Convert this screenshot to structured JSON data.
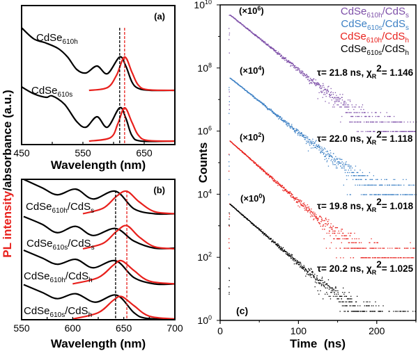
{
  "chart_data": [
    {
      "panel": "(a)",
      "type": "line",
      "xlabel": "Wavelength (nm)",
      "ylabel_parts": [
        "PL intensity",
        "/absorbance (a.u.)"
      ],
      "xlim": [
        450,
        700
      ],
      "ylim": [
        0,
        10
      ],
      "xticks": [
        450,
        550,
        650
      ],
      "xminor": [
        500,
        600,
        700
      ],
      "dashed_lines": [
        {
          "x": 610,
          "color": "#000000"
        },
        {
          "x": 618,
          "color": "#e8201c"
        }
      ],
      "labels": [
        {
          "base": "CdSe",
          "sub": "610h"
        },
        {
          "base": "CdSe",
          "sub": "610s"
        }
      ],
      "series": [
        {
          "name": "CdSe610h absorbance",
          "color": "#000000",
          "points": [
            [
              450,
              8.4
            ],
            [
              470,
              7.6
            ],
            [
              490,
              7.3
            ],
            [
              510,
              6.9
            ],
            [
              525,
              6.3
            ],
            [
              540,
              5.4
            ],
            [
              555,
              5.15
            ],
            [
              573,
              5.65
            ],
            [
              590,
              5.1
            ],
            [
              610,
              6.3
            ],
            [
              620,
              5.65
            ],
            [
              630,
              4.5
            ],
            [
              640,
              4.05
            ],
            [
              660,
              3.9
            ],
            [
              700,
              3.9
            ]
          ]
        },
        {
          "name": "CdSe610h PL",
          "color": "#e8201c",
          "points": [
            [
              560,
              3.9
            ],
            [
              590,
              4.1
            ],
            [
              605,
              5.0
            ],
            [
              618,
              6.3
            ],
            [
              630,
              5.2
            ],
            [
              640,
              4.3
            ],
            [
              655,
              3.95
            ],
            [
              700,
              3.9
            ]
          ]
        },
        {
          "name": "CdSe610s absorbance",
          "color": "#000000",
          "points": [
            [
              450,
              4.15
            ],
            [
              470,
              3.65
            ],
            [
              490,
              3.4
            ],
            [
              500,
              3.5
            ],
            [
              520,
              2.9
            ],
            [
              540,
              1.65
            ],
            [
              555,
              1.25
            ],
            [
              573,
              2.0
            ],
            [
              590,
              1.25
            ],
            [
              610,
              2.65
            ],
            [
              620,
              1.9
            ],
            [
              630,
              0.65
            ],
            [
              645,
              0.25
            ],
            [
              700,
              0.25
            ]
          ]
        },
        {
          "name": "CdSe610s PL",
          "color": "#e8201c",
          "points": [
            [
              560,
              0.25
            ],
            [
              595,
              0.5
            ],
            [
              607,
              1.5
            ],
            [
              618,
              2.65
            ],
            [
              630,
              1.6
            ],
            [
              640,
              0.7
            ],
            [
              655,
              0.3
            ],
            [
              700,
              0.25
            ]
          ]
        }
      ]
    },
    {
      "panel": "(b)",
      "type": "line",
      "xlabel": "Wavelength (nm)",
      "xlim": [
        550,
        700
      ],
      "ylim": [
        0,
        10
      ],
      "xticks": [
        550,
        600,
        650,
        700
      ],
      "xminor": [
        575,
        625,
        675
      ],
      "dashed_lines": [
        {
          "x": 642,
          "color": "#000000"
        },
        {
          "x": 653,
          "color": "#e8201c"
        }
      ],
      "labels": [
        {
          "base": "CdSe",
          "sub": "610h",
          "mid": "/CdS",
          "sub2": "s"
        },
        {
          "base": "CdSe",
          "sub": "610s",
          "mid": "/CdS",
          "sub2": "s"
        },
        {
          "base": "CdSe",
          "sub": "610h",
          "mid": "/CdS",
          "sub2": "h"
        },
        {
          "base": "CdSe",
          "sub": "610s",
          "mid": "/CdS",
          "sub2": "h"
        }
      ],
      "series": [
        {
          "name": "CdSe610h/CdSs absorbance",
          "color": "#000000",
          "points": [
            [
              552,
              10
            ],
            [
              570,
              9.4
            ],
            [
              585,
              8.9
            ],
            [
              603,
              9.3
            ],
            [
              620,
              8.6
            ],
            [
              642,
              9.15
            ],
            [
              660,
              7.9
            ],
            [
              680,
              7.55
            ],
            [
              700,
              7.55
            ]
          ]
        },
        {
          "name": "CdSe610h/CdSs PL",
          "color": "#e8201c",
          "points": [
            [
              610,
              7.55
            ],
            [
              630,
              7.95
            ],
            [
              643,
              8.8
            ],
            [
              653,
              9.15
            ],
            [
              665,
              8.4
            ],
            [
              680,
              7.7
            ],
            [
              700,
              7.55
            ]
          ]
        },
        {
          "name": "CdSe610s/CdSs absorbance",
          "color": "#000000",
          "points": [
            [
              552,
              7.35
            ],
            [
              570,
              6.8
            ],
            [
              585,
              6.2
            ],
            [
              603,
              6.65
            ],
            [
              620,
              6.0
            ],
            [
              642,
              6.5
            ],
            [
              660,
              5.6
            ],
            [
              680,
              5.1
            ],
            [
              700,
              5.1
            ]
          ]
        },
        {
          "name": "CdSe610s/CdSs PL",
          "color": "#e8201c",
          "points": [
            [
              610,
              5.05
            ],
            [
              630,
              5.45
            ],
            [
              643,
              6.3
            ],
            [
              653,
              6.7
            ],
            [
              665,
              5.9
            ],
            [
              680,
              5.2
            ],
            [
              700,
              5.05
            ]
          ]
        },
        {
          "name": "CdSe610h/CdSh absorbance",
          "color": "#000000",
          "points": [
            [
              552,
              4.95
            ],
            [
              570,
              4.4
            ],
            [
              585,
              3.95
            ],
            [
              603,
              4.3
            ],
            [
              620,
              3.7
            ],
            [
              642,
              4.2
            ],
            [
              660,
              3.0
            ],
            [
              680,
              2.55
            ],
            [
              700,
              2.55
            ]
          ]
        },
        {
          "name": "CdSe610h/CdSh PL",
          "color": "#e8201c",
          "points": [
            [
              600,
              2.55
            ],
            [
              625,
              3.0
            ],
            [
              640,
              3.9
            ],
            [
              648,
              4.2
            ],
            [
              660,
              3.5
            ],
            [
              675,
              2.75
            ],
            [
              700,
              2.55
            ]
          ]
        },
        {
          "name": "CdSe610s/CdSh absorbance",
          "color": "#000000",
          "points": [
            [
              552,
              2.5
            ],
            [
              570,
              1.95
            ],
            [
              585,
              1.5
            ],
            [
              603,
              1.85
            ],
            [
              622,
              1.25
            ],
            [
              643,
              1.75
            ],
            [
              660,
              0.5
            ],
            [
              672,
              0.1
            ],
            [
              700,
              0.05
            ]
          ]
        },
        {
          "name": "CdSe610s/CdSh PL",
          "color": "#e8201c",
          "points": [
            [
              600,
              0.05
            ],
            [
              625,
              0.5
            ],
            [
              640,
              1.4
            ],
            [
              648,
              1.65
            ],
            [
              660,
              1.0
            ],
            [
              675,
              0.25
            ],
            [
              700,
              0.05
            ]
          ]
        }
      ]
    },
    {
      "panel": "(c)",
      "type": "scatter",
      "xlabel": "Time  (ns)",
      "ylabel": "Counts",
      "xlim": [
        0,
        250
      ],
      "ylim_log10": [
        0,
        10
      ],
      "xticks": [
        0,
        100,
        200
      ],
      "xminor": [
        50,
        150,
        250
      ],
      "ytick_base": "10",
      "ytick_exponents": [
        "10",
        "8",
        "6",
        "4",
        "2",
        "0"
      ],
      "legend_placement": "top-right",
      "series": [
        {
          "name": "CdSe610h/CdSs",
          "legend": {
            "base": "CdSe",
            "sub": "610h",
            "mid": "/CdS",
            "sub2": "s"
          },
          "color": "#7d4fa8",
          "scale_exp": 6,
          "multiplier": {
            "open": "(×10",
            "exp": "6",
            "close": ")"
          },
          "peak_counts_raw": 5000,
          "t0_ns": 12,
          "tau_ns": 21.8,
          "chi2": 1.146,
          "tau_text": "τ= 21.8 ns, ",
          "chi": "χ",
          "chi_sub": "R",
          "chi_sup": "2",
          "chi_val": "= 1.146"
        },
        {
          "name": "CdSe610s/CdSs",
          "legend": {
            "base": "CdSe",
            "sub": "610s",
            "mid": "/CdS",
            "sub2": "s"
          },
          "color": "#3b7fc4",
          "scale_exp": 4,
          "multiplier": {
            "open": "(×10",
            "exp": "4",
            "close": ")"
          },
          "peak_counts_raw": 5000,
          "t0_ns": 12,
          "tau_ns": 22.0,
          "chi2": 1.118,
          "tau_text": "τ= 22.0 ns, ",
          "chi": "χ",
          "chi_sub": "R",
          "chi_sup": "2",
          "chi_val": "= 1.118"
        },
        {
          "name": "CdSe610h/CdSh",
          "legend": {
            "base": "CdSe",
            "sub": "610h",
            "mid": "/CdS",
            "sub2": "h"
          },
          "color": "#e8201c",
          "scale_exp": 2,
          "multiplier": {
            "open": "(×10",
            "exp": "2",
            "close": ")"
          },
          "peak_counts_raw": 5000,
          "t0_ns": 12,
          "tau_ns": 19.8,
          "chi2": 1.018,
          "tau_text": "τ= 19.8 ns, ",
          "chi": "χ",
          "chi_sub": "R",
          "chi_sup": "2",
          "chi_val": "= 1.018"
        },
        {
          "name": "CdSe610s/CdSh",
          "legend": {
            "base": "CdSe",
            "sub": "610s",
            "mid": "/CdS",
            "sub2": "h"
          },
          "color": "#000000",
          "scale_exp": 0,
          "multiplier": {
            "open": "(×10",
            "exp": "0",
            "close": ")"
          },
          "peak_counts_raw": 5000,
          "t0_ns": 12,
          "tau_ns": 20.2,
          "chi2": 1.025,
          "tau_text": "τ= 20.2 ns, ",
          "chi": "χ",
          "chi_sub": "R",
          "chi_sup": "2",
          "chi_val": "= 1.025"
        }
      ]
    }
  ]
}
